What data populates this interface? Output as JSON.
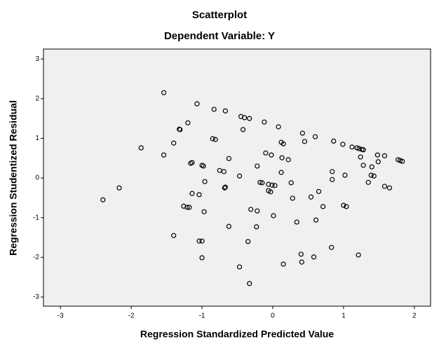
{
  "chart_data": {
    "type": "scatter",
    "title": "Scatterplot",
    "subtitle": "Dependent Variable: Y",
    "x_label": "Regression Standardized Predicted Value",
    "y_label": "Regression Studentized Residual",
    "color": "#000000",
    "x": [
      -1.54,
      -1.07,
      -0.83,
      -0.67,
      -0.45,
      -0.4,
      -0.33,
      -0.12,
      0.08,
      -1.31,
      -1.32,
      -0.42,
      -1.2,
      0.42,
      0.6,
      -0.85,
      -0.81,
      0.45,
      0.86,
      0.99,
      0.12,
      0.15,
      1.12,
      1.19,
      1.22,
      1.26,
      1.28,
      -1.4,
      -1.86,
      1.48,
      1.58,
      -1.54,
      -0.1,
      -0.02,
      0.13,
      0.22,
      1.24,
      1.49,
      -0.62,
      1.77,
      1.8,
      1.83,
      -1.14,
      -1.16,
      -1.0,
      -0.98,
      -0.22,
      1.28,
      1.4,
      -0.75,
      -0.69,
      0.12,
      0.84,
      -0.47,
      1.02,
      1.39,
      1.43,
      0.84,
      -0.96,
      -0.18,
      -0.15,
      -0.06,
      -0.01,
      0.03,
      0.26,
      1.35,
      -0.67,
      -0.68,
      1.58,
      1.65,
      -2.17,
      -0.06,
      -0.03,
      0.65,
      -1.14,
      -1.04,
      0.54,
      0.28,
      -2.4,
      -1.26,
      -1.21,
      -1.18,
      0.71,
      1.0,
      1.04,
      -0.31,
      -0.22,
      -0.97,
      0.01,
      0.61,
      0.34,
      -0.62,
      -0.23,
      -1.4,
      -1.04,
      -1.0,
      -0.35,
      0.83,
      0.4,
      1.21,
      -1.0,
      0.58,
      0.41,
      0.15,
      -0.47,
      -0.33
    ],
    "y": [
      2.15,
      1.87,
      1.73,
      1.69,
      1.55,
      1.52,
      1.5,
      1.41,
      1.29,
      1.22,
      1.23,
      1.22,
      1.39,
      1.13,
      1.04,
      0.99,
      0.97,
      0.92,
      0.93,
      0.85,
      0.9,
      0.86,
      0.78,
      0.76,
      0.74,
      0.72,
      0.71,
      0.88,
      0.76,
      0.58,
      0.56,
      0.58,
      0.63,
      0.58,
      0.51,
      0.46,
      0.53,
      0.41,
      0.49,
      0.46,
      0.44,
      0.42,
      0.39,
      0.37,
      0.32,
      0.3,
      0.3,
      0.32,
      0.28,
      0.19,
      0.16,
      0.14,
      0.16,
      0.05,
      0.07,
      0.07,
      0.05,
      -0.04,
      -0.09,
      -0.11,
      -0.12,
      -0.16,
      -0.18,
      -0.19,
      -0.12,
      -0.11,
      -0.23,
      -0.25,
      -0.21,
      -0.25,
      -0.25,
      -0.32,
      -0.35,
      -0.34,
      -0.39,
      -0.42,
      -0.48,
      -0.51,
      -0.55,
      -0.71,
      -0.74,
      -0.74,
      -0.72,
      -0.69,
      -0.72,
      -0.79,
      -0.83,
      -0.85,
      -0.95,
      -1.06,
      -1.11,
      -1.22,
      -1.23,
      -1.45,
      -1.59,
      -1.59,
      -1.6,
      -1.75,
      -1.92,
      -1.94,
      -2.01,
      -1.99,
      -2.12,
      -2.17,
      -2.24,
      -2.66
    ],
    "xlim": [
      -3.24,
      2.23
    ],
    "ylim": [
      -3.23,
      3.25
    ],
    "xticks": [
      -3,
      -2,
      -1,
      0,
      1,
      2
    ],
    "yticks": [
      -3,
      -2,
      -1,
      0,
      1,
      2,
      3
    ]
  }
}
